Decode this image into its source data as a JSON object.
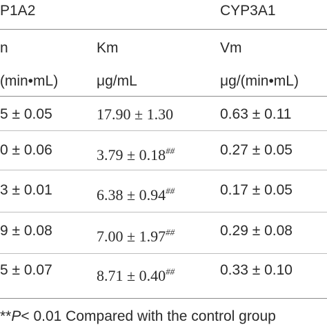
{
  "groups": {
    "left": "P1A2",
    "right": "CYP3A1"
  },
  "columns": {
    "vm_partial": "n",
    "km": "Km",
    "vm": "Vm",
    "unit_left": "/(min•mL)",
    "unit_km": "μg/mL",
    "unit_vm": "μg/(min•mL)"
  },
  "rows": [
    {
      "col1": "5 ± 0.05",
      "km": "17.90 ± 1.30",
      "km_sup": "",
      "vm": "0.63 ± 0.11"
    },
    {
      "col1": "0 ± 0.06",
      "km": "3.79 ± 0.18",
      "km_sup": "##",
      "vm": "0.27 ± 0.05"
    },
    {
      "col1": "3 ± 0.01",
      "km": "6.38 ± 0.94",
      "km_sup": "##",
      "vm": "0.17 ± 0.05"
    },
    {
      "col1": "9 ± 0.08",
      "km": "7.00 ± 1.97",
      "km_sup": "##",
      "vm": "0.29 ± 0.08"
    },
    {
      "col1": "5 ± 0.07",
      "km": "8.71 ± 0.40",
      "km_sup": "##",
      "vm": "0.33 ± 0.10"
    }
  ],
  "footnote": {
    "stars": "**",
    "p": "P",
    "text": "< 0.01 Compared with the control group"
  }
}
